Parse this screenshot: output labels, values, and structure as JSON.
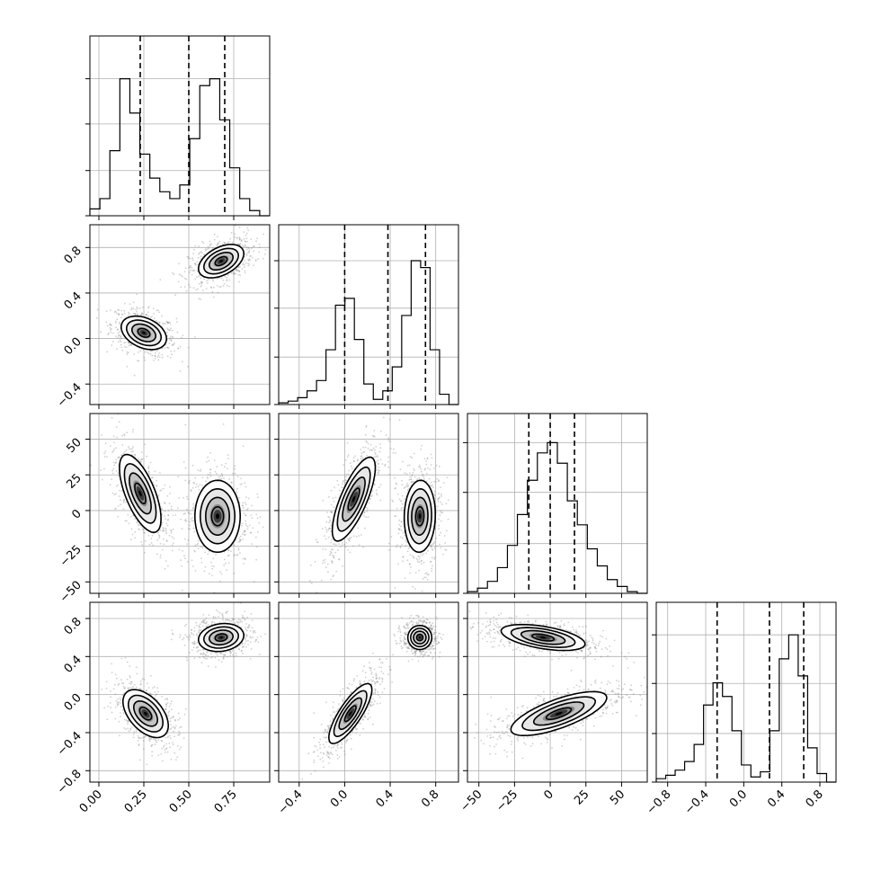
{
  "chart_data": {
    "type": "corner",
    "title": "",
    "grid": true,
    "parameters": [
      {
        "range": [
          -0.05,
          0.95
        ],
        "ticks": [
          0.0,
          0.25,
          0.5,
          0.75
        ],
        "tick_labels": [
          "0.00",
          "0.25",
          "0.50",
          "0.75"
        ],
        "quantiles": [
          0.23,
          0.5,
          0.7
        ],
        "hist": [
          0.04,
          0.1,
          0.38,
          0.8,
          0.6,
          0.36,
          0.22,
          0.14,
          0.1,
          0.18,
          0.45,
          0.76,
          0.8,
          0.56,
          0.28,
          0.1,
          0.03,
          0.0
        ]
      },
      {
        "range": [
          -0.58,
          1.0
        ],
        "ticks": [
          -0.4,
          0.0,
          0.4,
          0.8
        ],
        "tick_labels": [
          "−0.4",
          "0.0",
          "0.4",
          "0.8"
        ],
        "quantiles": [
          0.0,
          0.38,
          0.71
        ],
        "hist": [
          0.01,
          0.02,
          0.04,
          0.08,
          0.14,
          0.32,
          0.58,
          0.62,
          0.38,
          0.12,
          0.03,
          0.08,
          0.22,
          0.52,
          0.84,
          0.8,
          0.32,
          0.06,
          0.0
        ]
      },
      {
        "range": [
          -58,
          68
        ],
        "ticks": [
          -50,
          -25,
          0,
          25,
          50
        ],
        "tick_labels": [
          "−50",
          "−25",
          "0",
          "25",
          "50"
        ],
        "quantiles": [
          -15,
          0,
          17
        ],
        "hist": [
          0.01,
          0.03,
          0.07,
          0.15,
          0.28,
          0.46,
          0.66,
          0.82,
          0.88,
          0.76,
          0.54,
          0.4,
          0.26,
          0.16,
          0.08,
          0.04,
          0.01,
          0.0
        ]
      },
      {
        "range": [
          -0.92,
          0.97
        ],
        "ticks": [
          -0.8,
          -0.4,
          0.0,
          0.4,
          0.8
        ],
        "tick_labels": [
          "−0.8",
          "−0.4",
          "0.0",
          "0.4",
          "0.8"
        ],
        "quantiles": [
          -0.28,
          0.27,
          0.63
        ],
        "hist": [
          0.02,
          0.04,
          0.07,
          0.12,
          0.22,
          0.45,
          0.58,
          0.5,
          0.3,
          0.1,
          0.03,
          0.06,
          0.3,
          0.72,
          0.86,
          0.62,
          0.2,
          0.05,
          0.0
        ]
      }
    ],
    "pairs": [
      {
        "row": 1,
        "col": 0,
        "modes": [
          {
            "center": [
              0.25,
              0.05
            ],
            "sd": [
              0.06,
              0.07
            ],
            "rho": -0.35
          },
          {
            "center": [
              0.68,
              0.68
            ],
            "sd": [
              0.06,
              0.07
            ],
            "rho": 0.45
          }
        ]
      },
      {
        "row": 2,
        "col": 0,
        "modes": [
          {
            "center": [
              0.23,
              12
            ],
            "sd": [
              0.055,
              13
            ],
            "rho": -0.65
          },
          {
            "center": [
              0.66,
              -4
            ],
            "sd": [
              0.06,
              12
            ],
            "rho": 0.0
          }
        ]
      },
      {
        "row": 2,
        "col": 1,
        "modes": [
          {
            "center": [
              0.08,
              8
            ],
            "sd": [
              0.09,
              14
            ],
            "rho": 0.75
          },
          {
            "center": [
              0.66,
              -4
            ],
            "sd": [
              0.065,
              12
            ],
            "rho": 0.05
          }
        ]
      },
      {
        "row": 3,
        "col": 0,
        "modes": [
          {
            "center": [
              0.26,
              -0.2
            ],
            "sd": [
              0.06,
              0.12
            ],
            "rho": -0.5
          },
          {
            "center": [
              0.68,
              0.6
            ],
            "sd": [
              0.06,
              0.07
            ],
            "rho": 0.15
          }
        ]
      },
      {
        "row": 3,
        "col": 1,
        "modes": [
          {
            "center": [
              0.05,
              -0.2
            ],
            "sd": [
              0.09,
              0.15
            ],
            "rho": 0.8
          },
          {
            "center": [
              0.66,
              0.6
            ],
            "sd": [
              0.05,
              0.06
            ],
            "rho": 0.0
          }
        ]
      },
      {
        "row": 3,
        "col": 2,
        "modes": [
          {
            "center": [
              -5,
              0.6
            ],
            "sd": [
              14,
              0.065
            ],
            "rho": -0.5
          },
          {
            "center": [
              6,
              -0.2
            ],
            "sd": [
              16,
              0.11
            ],
            "rho": 0.72
          }
        ]
      }
    ]
  }
}
